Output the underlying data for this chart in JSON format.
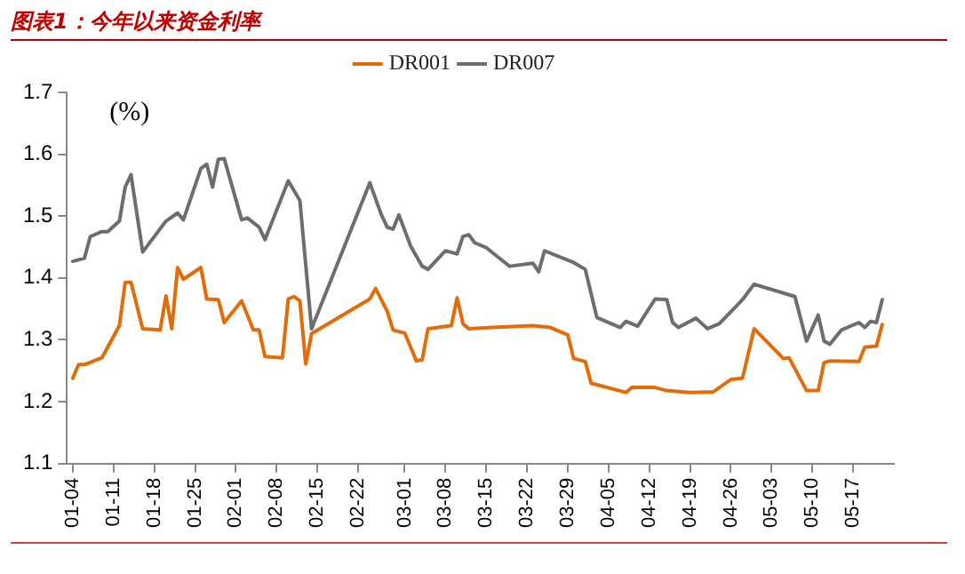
{
  "chart_data": {
    "type": "line",
    "title": "图表1：今年以来资金利率",
    "ylabel": "(%)",
    "legend": "top",
    "grid": false,
    "marker": "none",
    "line_style": "solid",
    "xlim": [
      "--01-03",
      "--05-24"
    ],
    "xticks": [
      {
        "value": "--01-04",
        "label": "01-04"
      },
      {
        "value": "--01-11",
        "label": "01-11"
      },
      {
        "value": "--01-18",
        "label": "01-18"
      },
      {
        "value": "--01-25",
        "label": "01-25"
      },
      {
        "value": "--02-01",
        "label": "02-01"
      },
      {
        "value": "--02-08",
        "label": "02-08"
      },
      {
        "value": "--02-15",
        "label": "02-15"
      },
      {
        "value": "--02-22",
        "label": "02-22"
      },
      {
        "value": "--03-01",
        "label": "03-01"
      },
      {
        "value": "--03-08",
        "label": "03-08"
      },
      {
        "value": "--03-15",
        "label": "03-15"
      },
      {
        "value": "--03-22",
        "label": "03-22"
      },
      {
        "value": "--03-29",
        "label": "03-29"
      },
      {
        "value": "--04-05",
        "label": "04-05"
      },
      {
        "value": "--04-12",
        "label": "04-12"
      },
      {
        "value": "--04-19",
        "label": "04-19"
      },
      {
        "value": "--04-26",
        "label": "04-26"
      },
      {
        "value": "--05-03",
        "label": "05-03"
      },
      {
        "value": "--05-10",
        "label": "05-10"
      },
      {
        "value": "--05-17",
        "label": "05-17"
      }
    ],
    "ylim": [
      1.1,
      1.7
    ],
    "yticks": [
      1.1,
      1.2,
      1.3,
      1.4,
      1.5,
      1.6,
      1.7
    ],
    "series": [
      {
        "name": "DR001",
        "color": "#e36c09",
        "x": [
          "--01-04",
          "--01-05",
          "--01-06",
          "--01-09",
          "--01-12",
          "--01-13",
          "--01-14",
          "--01-16",
          "--01-19",
          "--01-20",
          "--01-21",
          "--01-22",
          "--01-23",
          "--01-26",
          "--01-27",
          "--01-29",
          "--01-30",
          "--02-02",
          "--02-04",
          "--02-05",
          "--02-06",
          "--02-09",
          "--02-10",
          "--02-11",
          "--02-12",
          "--02-13",
          "--02-14",
          "--02-24",
          "--02-25",
          "--02-27",
          "--02-28",
          "--03-01",
          "--03-03",
          "--03-04",
          "--03-05",
          "--03-09",
          "--03-10",
          "--03-11",
          "--03-12",
          "--03-16",
          "--03-23",
          "--03-26",
          "--03-29",
          "--03-30",
          "--04-01",
          "--04-02",
          "--04-08",
          "--04-09",
          "--04-13",
          "--04-15",
          "--04-19",
          "--04-23",
          "--04-26",
          "--04-28",
          "--04-30",
          "--05-05",
          "--05-06",
          "--05-09",
          "--05-11",
          "--05-12",
          "--05-13",
          "--05-18",
          "--05-19",
          "--05-21",
          "--05-22"
        ],
        "values": [
          1.238,
          1.26,
          1.26,
          1.271,
          1.323,
          1.393,
          1.393,
          1.318,
          1.316,
          1.371,
          1.318,
          1.417,
          1.398,
          1.417,
          1.366,
          1.365,
          1.328,
          1.363,
          1.316,
          1.316,
          1.273,
          1.271,
          1.366,
          1.37,
          1.363,
          1.261,
          1.31,
          1.366,
          1.383,
          1.346,
          1.316,
          1.311,
          1.266,
          1.268,
          1.318,
          1.323,
          1.368,
          1.326,
          1.318,
          1.32,
          1.323,
          1.32,
          1.308,
          1.27,
          1.265,
          1.23,
          1.215,
          1.223,
          1.223,
          1.218,
          1.215,
          1.216,
          1.236,
          1.238,
          1.318,
          1.27,
          1.271,
          1.218,
          1.218,
          1.263,
          1.266,
          1.265,
          1.288,
          1.29,
          1.325
        ]
      },
      {
        "name": "DR007",
        "color": "#6d6d6d",
        "x": [
          "--01-04",
          "--01-06",
          "--01-07",
          "--01-09",
          "--01-10",
          "--01-12",
          "--01-13",
          "--01-14",
          "--01-16",
          "--01-20",
          "--01-22",
          "--01-23",
          "--01-26",
          "--01-27",
          "--01-28",
          "--01-29",
          "--01-30",
          "--02-02",
          "--02-03",
          "--02-05",
          "--02-06",
          "--02-10",
          "--02-12",
          "--02-14",
          "--02-24",
          "--02-26",
          "--02-27",
          "--02-28",
          "--02-29",
          "--03-02",
          "--03-04",
          "--03-05",
          "--03-08",
          "--03-10",
          "--03-11",
          "--03-12",
          "--03-13",
          "--03-15",
          "--03-17",
          "--03-19",
          "--03-23",
          "--03-24",
          "--03-25",
          "--03-30",
          "--04-01",
          "--04-03",
          "--04-07",
          "--04-08",
          "--04-10",
          "--04-13",
          "--04-15",
          "--04-16",
          "--04-17",
          "--04-20",
          "--04-22",
          "--04-24",
          "--04-27",
          "--04-28",
          "--04-30",
          "--05-07",
          "--05-09",
          "--05-11",
          "--05-12",
          "--05-13",
          "--05-15",
          "--05-18",
          "--05-19",
          "--05-20",
          "--05-21",
          "--05-22"
        ],
        "values": [
          1.427,
          1.432,
          1.467,
          1.475,
          1.475,
          1.492,
          1.547,
          1.567,
          1.442,
          1.492,
          1.505,
          1.494,
          1.577,
          1.584,
          1.547,
          1.592,
          1.593,
          1.494,
          1.497,
          1.482,
          1.462,
          1.557,
          1.525,
          1.318,
          1.554,
          1.502,
          1.482,
          1.479,
          1.502,
          1.452,
          1.419,
          1.414,
          1.444,
          1.439,
          1.467,
          1.47,
          1.457,
          1.449,
          1.434,
          1.419,
          1.424,
          1.41,
          1.444,
          1.425,
          1.414,
          1.336,
          1.32,
          1.33,
          1.322,
          1.366,
          1.365,
          1.328,
          1.32,
          1.335,
          1.318,
          1.326,
          1.355,
          1.365,
          1.39,
          1.37,
          1.298,
          1.34,
          1.298,
          1.293,
          1.316,
          1.328,
          1.32,
          1.33,
          1.328,
          1.365
        ]
      }
    ]
  }
}
